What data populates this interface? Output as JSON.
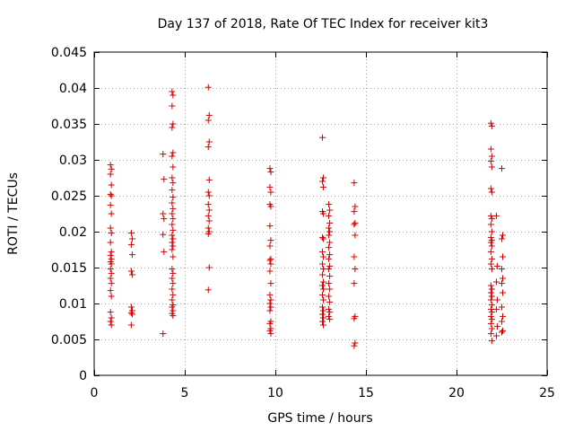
{
  "chart_data": {
    "type": "scatter",
    "title": "Day 137 of 2018, Rate Of TEC Index for receiver kit3",
    "xlabel": "GPS time / hours",
    "ylabel": "ROTI / TECUs",
    "xlim": [
      0,
      25
    ],
    "ylim": [
      0,
      0.045
    ],
    "xticks": [
      0,
      5,
      10,
      15,
      20,
      25
    ],
    "yticks": [
      0,
      0.005,
      0.01,
      0.015,
      0.02,
      0.025,
      0.03,
      0.035,
      0.04,
      0.045
    ],
    "xtick_labels": [
      "0",
      "5",
      "10",
      "15",
      "20",
      "25"
    ],
    "ytick_labels": [
      "0",
      "0.005",
      "0.01",
      "0.015",
      "0.02",
      "0.025",
      "0.03",
      "0.035",
      "0.04",
      "0.045"
    ],
    "grid": true,
    "marker": "+",
    "color": "#d40000",
    "series": [
      {
        "name": "ROTI",
        "points": [
          [
            0.9,
            0.0293
          ],
          [
            0.95,
            0.0287
          ],
          [
            0.9,
            0.028
          ],
          [
            0.95,
            0.0265
          ],
          [
            0.9,
            0.0252
          ],
          [
            0.95,
            0.025
          ],
          [
            0.9,
            0.0237
          ],
          [
            0.95,
            0.0225
          ],
          [
            0.9,
            0.0205
          ],
          [
            0.95,
            0.0198
          ],
          [
            0.9,
            0.0185
          ],
          [
            0.95,
            0.0172
          ],
          [
            0.9,
            0.0167
          ],
          [
            0.95,
            0.0162
          ],
          [
            0.9,
            0.0158
          ],
          [
            0.95,
            0.0155
          ],
          [
            0.9,
            0.0148
          ],
          [
            0.95,
            0.0142
          ],
          [
            0.9,
            0.0135
          ],
          [
            0.95,
            0.0128
          ],
          [
            0.9,
            0.0118
          ],
          [
            0.95,
            0.011
          ],
          [
            0.9,
            0.0088
          ],
          [
            0.95,
            0.008
          ],
          [
            0.9,
            0.0075
          ],
          [
            0.95,
            0.007
          ],
          [
            2.05,
            0.0198
          ],
          [
            2.1,
            0.019
          ],
          [
            2.05,
            0.0182
          ],
          [
            2.1,
            0.0168
          ],
          [
            2.05,
            0.0145
          ],
          [
            2.1,
            0.014
          ],
          [
            2.05,
            0.0095
          ],
          [
            2.1,
            0.009
          ],
          [
            2.05,
            0.0087
          ],
          [
            2.1,
            0.0085
          ],
          [
            2.05,
            0.007
          ],
          [
            3.8,
            0.0308
          ],
          [
            3.85,
            0.0273
          ],
          [
            3.8,
            0.0225
          ],
          [
            3.85,
            0.0218
          ],
          [
            3.8,
            0.0196
          ],
          [
            3.85,
            0.0172
          ],
          [
            3.8,
            0.0058
          ],
          [
            4.3,
            0.0395
          ],
          [
            4.35,
            0.039
          ],
          [
            4.3,
            0.0375
          ],
          [
            4.35,
            0.035
          ],
          [
            4.3,
            0.0345
          ],
          [
            4.35,
            0.031
          ],
          [
            4.3,
            0.0305
          ],
          [
            4.35,
            0.029
          ],
          [
            4.3,
            0.0275
          ],
          [
            4.35,
            0.0268
          ],
          [
            4.3,
            0.0258
          ],
          [
            4.35,
            0.0248
          ],
          [
            4.3,
            0.024
          ],
          [
            4.35,
            0.0232
          ],
          [
            4.3,
            0.0225
          ],
          [
            4.35,
            0.0218
          ],
          [
            4.3,
            0.021
          ],
          [
            4.35,
            0.0202
          ],
          [
            4.3,
            0.0195
          ],
          [
            4.35,
            0.019
          ],
          [
            4.3,
            0.0185
          ],
          [
            4.35,
            0.018
          ],
          [
            4.3,
            0.0175
          ],
          [
            4.35,
            0.0165
          ],
          [
            4.3,
            0.0148
          ],
          [
            4.35,
            0.0142
          ],
          [
            4.3,
            0.0135
          ],
          [
            4.35,
            0.0128
          ],
          [
            4.3,
            0.012
          ],
          [
            4.35,
            0.0112
          ],
          [
            4.3,
            0.0105
          ],
          [
            4.35,
            0.0098
          ],
          [
            4.3,
            0.0095
          ],
          [
            4.35,
            0.009
          ],
          [
            4.3,
            0.0086
          ],
          [
            4.35,
            0.0083
          ],
          [
            6.3,
            0.0401
          ],
          [
            6.35,
            0.0362
          ],
          [
            6.3,
            0.0355
          ],
          [
            6.35,
            0.0325
          ],
          [
            6.3,
            0.0318
          ],
          [
            6.35,
            0.0272
          ],
          [
            6.3,
            0.0255
          ],
          [
            6.35,
            0.025
          ],
          [
            6.3,
            0.0238
          ],
          [
            6.35,
            0.023
          ],
          [
            6.3,
            0.0222
          ],
          [
            6.35,
            0.0215
          ],
          [
            6.3,
            0.0205
          ],
          [
            6.35,
            0.02
          ],
          [
            6.3,
            0.0197
          ],
          [
            6.35,
            0.015
          ],
          [
            6.3,
            0.0119
          ],
          [
            9.7,
            0.0288
          ],
          [
            9.75,
            0.0283
          ],
          [
            9.7,
            0.0262
          ],
          [
            9.75,
            0.0255
          ],
          [
            9.7,
            0.0238
          ],
          [
            9.75,
            0.0235
          ],
          [
            9.7,
            0.0208
          ],
          [
            9.75,
            0.0188
          ],
          [
            9.7,
            0.018
          ],
          [
            9.75,
            0.0162
          ],
          [
            9.7,
            0.016
          ],
          [
            9.75,
            0.0155
          ],
          [
            9.7,
            0.0145
          ],
          [
            9.75,
            0.0128
          ],
          [
            9.7,
            0.0112
          ],
          [
            9.75,
            0.0105
          ],
          [
            9.7,
            0.01
          ],
          [
            9.75,
            0.0095
          ],
          [
            9.7,
            0.009
          ],
          [
            9.75,
            0.0075
          ],
          [
            9.7,
            0.0072
          ],
          [
            9.75,
            0.0065
          ],
          [
            9.7,
            0.0062
          ],
          [
            9.75,
            0.0058
          ],
          [
            12.6,
            0.0331
          ],
          [
            12.65,
            0.0275
          ],
          [
            12.6,
            0.027
          ],
          [
            12.65,
            0.0262
          ],
          [
            12.6,
            0.0228
          ],
          [
            12.65,
            0.0225
          ],
          [
            12.6,
            0.0192
          ],
          [
            12.65,
            0.019
          ],
          [
            12.6,
            0.0172
          ],
          [
            12.65,
            0.0165
          ],
          [
            12.6,
            0.0155
          ],
          [
            12.65,
            0.0148
          ],
          [
            12.6,
            0.014
          ],
          [
            12.65,
            0.013
          ],
          [
            12.6,
            0.0125
          ],
          [
            12.65,
            0.012
          ],
          [
            12.6,
            0.0112
          ],
          [
            12.65,
            0.0105
          ],
          [
            12.6,
            0.0095
          ],
          [
            12.65,
            0.009
          ],
          [
            12.6,
            0.0085
          ],
          [
            12.65,
            0.008
          ],
          [
            12.6,
            0.0075
          ],
          [
            12.65,
            0.007
          ],
          [
            12.95,
            0.0238
          ],
          [
            13.0,
            0.023
          ],
          [
            12.95,
            0.0222
          ],
          [
            13.0,
            0.0212
          ],
          [
            12.95,
            0.0205
          ],
          [
            13.0,
            0.02
          ],
          [
            12.95,
            0.0195
          ],
          [
            13.0,
            0.0185
          ],
          [
            12.95,
            0.0178
          ],
          [
            13.0,
            0.0168
          ],
          [
            12.95,
            0.0162
          ],
          [
            13.0,
            0.0152
          ],
          [
            12.95,
            0.0148
          ],
          [
            13.0,
            0.0138
          ],
          [
            12.95,
            0.0128
          ],
          [
            13.0,
            0.012
          ],
          [
            12.95,
            0.011
          ],
          [
            13.0,
            0.0102
          ],
          [
            12.95,
            0.0092
          ],
          [
            13.0,
            0.0088
          ],
          [
            12.95,
            0.0082
          ],
          [
            13.0,
            0.0078
          ],
          [
            14.35,
            0.0268
          ],
          [
            14.4,
            0.0235
          ],
          [
            14.35,
            0.0228
          ],
          [
            14.4,
            0.0212
          ],
          [
            14.35,
            0.021
          ],
          [
            14.4,
            0.0195
          ],
          [
            14.35,
            0.0165
          ],
          [
            14.4,
            0.0148
          ],
          [
            14.35,
            0.0128
          ],
          [
            14.4,
            0.0082
          ],
          [
            14.35,
            0.0079
          ],
          [
            14.4,
            0.0045
          ],
          [
            14.35,
            0.0041
          ],
          [
            21.9,
            0.0351
          ],
          [
            21.95,
            0.0347
          ],
          [
            21.9,
            0.0315
          ],
          [
            21.95,
            0.0305
          ],
          [
            21.9,
            0.0298
          ],
          [
            21.95,
            0.029
          ],
          [
            21.9,
            0.026
          ],
          [
            21.95,
            0.0255
          ],
          [
            21.9,
            0.0222
          ],
          [
            21.95,
            0.0218
          ],
          [
            21.9,
            0.021
          ],
          [
            21.95,
            0.02
          ],
          [
            21.9,
            0.0192
          ],
          [
            21.95,
            0.0188
          ],
          [
            21.9,
            0.0185
          ],
          [
            21.95,
            0.018
          ],
          [
            21.9,
            0.0172
          ],
          [
            21.95,
            0.0162
          ],
          [
            21.9,
            0.0155
          ],
          [
            21.95,
            0.0148
          ],
          [
            21.9,
            0.0125
          ],
          [
            21.95,
            0.012
          ],
          [
            21.9,
            0.0115
          ],
          [
            21.95,
            0.011
          ],
          [
            21.9,
            0.0105
          ],
          [
            21.95,
            0.0098
          ],
          [
            21.9,
            0.0092
          ],
          [
            21.95,
            0.0088
          ],
          [
            21.9,
            0.0082
          ],
          [
            21.95,
            0.0078
          ],
          [
            21.9,
            0.0072
          ],
          [
            21.95,
            0.0065
          ],
          [
            21.9,
            0.0058
          ],
          [
            21.95,
            0.0048
          ],
          [
            22.2,
            0.0222
          ],
          [
            22.25,
            0.0152
          ],
          [
            22.2,
            0.013
          ],
          [
            22.25,
            0.0105
          ],
          [
            22.2,
            0.0092
          ],
          [
            22.25,
            0.0068
          ],
          [
            22.2,
            0.0055
          ],
          [
            22.5,
            0.0288
          ],
          [
            22.55,
            0.0195
          ],
          [
            22.5,
            0.019
          ],
          [
            22.55,
            0.0165
          ],
          [
            22.5,
            0.0148
          ],
          [
            22.55,
            0.0135
          ],
          [
            22.5,
            0.0128
          ],
          [
            22.55,
            0.0115
          ],
          [
            22.5,
            0.0095
          ],
          [
            22.55,
            0.0082
          ],
          [
            22.5,
            0.0075
          ],
          [
            22.55,
            0.0062
          ],
          [
            22.5,
            0.006
          ]
        ]
      }
    ]
  }
}
